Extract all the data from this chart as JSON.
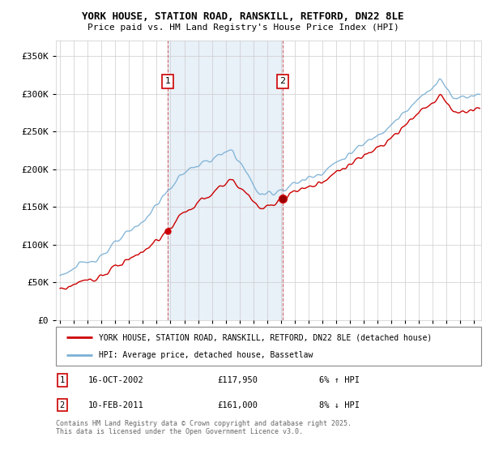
{
  "title": "YORK HOUSE, STATION ROAD, RANSKILL, RETFORD, DN22 8LE",
  "subtitle": "Price paid vs. HM Land Registry's House Price Index (HPI)",
  "legend_line1": "YORK HOUSE, STATION ROAD, RANSKILL, RETFORD, DN22 8LE (detached house)",
  "legend_line2": "HPI: Average price, detached house, Bassetlaw",
  "annotation1": {
    "label": "1",
    "date": "16-OCT-2002",
    "price": "£117,950",
    "pct": "6% ↑ HPI"
  },
  "annotation2": {
    "label": "2",
    "date": "10-FEB-2011",
    "price": "£161,000",
    "pct": "8% ↓ HPI"
  },
  "footnote": "Contains HM Land Registry data © Crown copyright and database right 2025.\nThis data is licensed under the Open Government Licence v3.0.",
  "house_color": "#cc0000",
  "hpi_color": "#7ab0d4",
  "shading_color": "#ddeeff",
  "annot_box_color": "#cc0000",
  "ylim": [
    0,
    370000
  ],
  "yticks": [
    0,
    50000,
    100000,
    150000,
    200000,
    250000,
    300000,
    350000
  ],
  "xlim_start": 1994.7,
  "xlim_end": 2025.5,
  "marker1_x": 2002.79,
  "marker1_y": 117950,
  "marker2_x": 2011.12,
  "marker2_y": 161000,
  "shade1_x": 2002.79,
  "shade2_x": 2011.12
}
